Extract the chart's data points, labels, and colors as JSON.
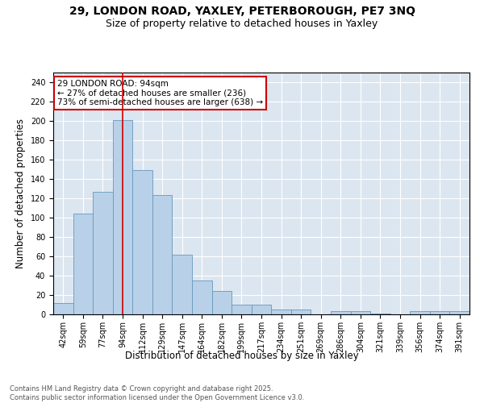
{
  "title_line1": "29, LONDON ROAD, YAXLEY, PETERBOROUGH, PE7 3NQ",
  "title_line2": "Size of property relative to detached houses in Yaxley",
  "xlabel": "Distribution of detached houses by size in Yaxley",
  "ylabel": "Number of detached properties",
  "categories": [
    "42sqm",
    "59sqm",
    "77sqm",
    "94sqm",
    "112sqm",
    "129sqm",
    "147sqm",
    "164sqm",
    "182sqm",
    "199sqm",
    "217sqm",
    "234sqm",
    "251sqm",
    "269sqm",
    "286sqm",
    "304sqm",
    "321sqm",
    "339sqm",
    "356sqm",
    "374sqm",
    "391sqm"
  ],
  "values": [
    12,
    104,
    127,
    201,
    149,
    123,
    62,
    35,
    24,
    10,
    10,
    5,
    5,
    0,
    3,
    3,
    1,
    0,
    3,
    3,
    3
  ],
  "bar_color": "#b8d0e8",
  "bar_edge_color": "#6699bb",
  "highlight_index": 3,
  "highlight_line_color": "#cc0000",
  "annotation_text": "29 LONDON ROAD: 94sqm\n← 27% of detached houses are smaller (236)\n73% of semi-detached houses are larger (638) →",
  "annotation_box_color": "#ffffff",
  "annotation_box_edge": "#cc0000",
  "ylim": [
    0,
    250
  ],
  "yticks": [
    0,
    20,
    40,
    60,
    80,
    100,
    120,
    140,
    160,
    180,
    200,
    220,
    240
  ],
  "background_color": "#dce6f0",
  "footer_text": "Contains HM Land Registry data © Crown copyright and database right 2025.\nContains public sector information licensed under the Open Government Licence v3.0.",
  "title_fontsize": 10,
  "subtitle_fontsize": 9,
  "tick_fontsize": 7,
  "label_fontsize": 8.5,
  "annotation_fontsize": 7.5
}
